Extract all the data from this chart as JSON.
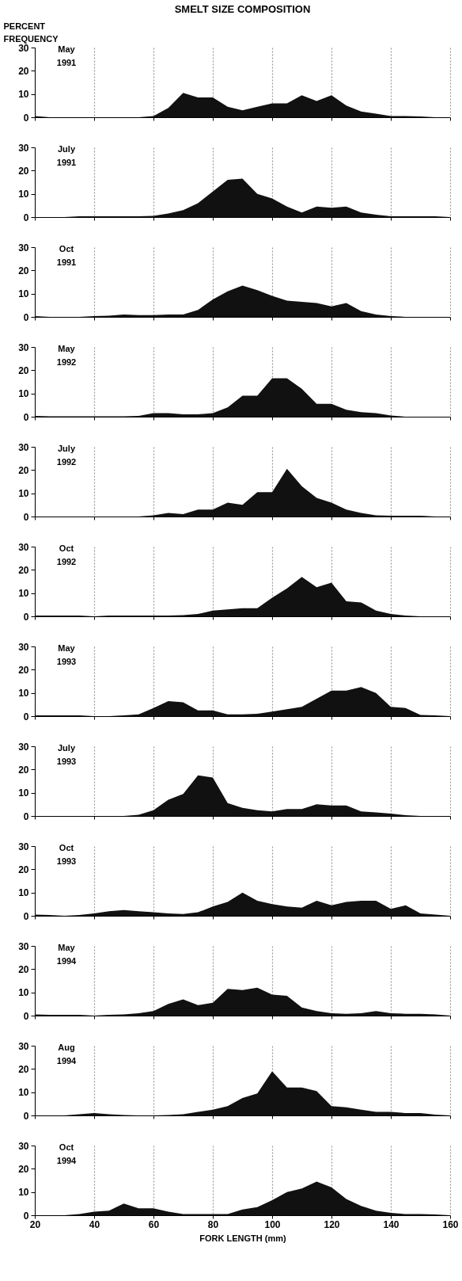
{
  "chart_data": [
    {
      "type": "area",
      "title": "SMELT SIZE COMPOSITION",
      "ylabel": "PERCENT FREQUENCY",
      "annotations": [
        "May 1991"
      ],
      "color": "#111111",
      "grid": "x",
      "tick_labels": "y",
      "ylim": [
        0,
        30
      ],
      "yticks": [
        0,
        10,
        20,
        30
      ],
      "categories": [
        null,
        null,
        null,
        null,
        null,
        null,
        null,
        null,
        null,
        null,
        null,
        null,
        null,
        null,
        null,
        null,
        null,
        null,
        null,
        null,
        null,
        null,
        null,
        null,
        null,
        null,
        null,
        null,
        null
      ],
      "values": [
        0.5,
        0,
        0,
        0,
        0,
        0,
        0,
        0,
        0.5,
        4,
        10.5,
        8.5,
        8.5,
        4.5,
        3,
        4.5,
        6,
        6,
        9.5,
        7,
        9.5,
        5,
        2.5,
        1.5,
        0.5,
        0.5,
        0.3,
        0,
        0
      ]
    },
    {
      "type": "area",
      "annotations": [
        "July 1991"
      ],
      "color": "#111111",
      "grid": "x",
      "tick_labels": "y",
      "ylim": [
        0,
        30
      ],
      "yticks": [
        0,
        10,
        20,
        30
      ],
      "categories": [
        null,
        null,
        null,
        null,
        null,
        null,
        null,
        null,
        null,
        null,
        null,
        null,
        null,
        null,
        null,
        null,
        null,
        null,
        null,
        null,
        null,
        null,
        null,
        null,
        null,
        null,
        null,
        null,
        null
      ],
      "values": [
        0,
        0,
        0,
        0.3,
        0.3,
        0.3,
        0.3,
        0.3,
        0.5,
        1.5,
        3,
        6,
        11,
        16,
        16.5,
        10,
        8,
        4.5,
        2,
        4.5,
        4,
        4.5,
        2,
        1,
        0.3,
        0.3,
        0.3,
        0.3,
        0
      ]
    },
    {
      "type": "area",
      "annotations": [
        "Oct 1991"
      ],
      "color": "#111111",
      "grid": "x",
      "tick_labels": "y",
      "ylim": [
        0,
        30
      ],
      "yticks": [
        0,
        10,
        20,
        30
      ],
      "categories": [
        null,
        null,
        null,
        null,
        null,
        null,
        null,
        null,
        null,
        null,
        null,
        null,
        null,
        null,
        null,
        null,
        null,
        null,
        null,
        null,
        null,
        null,
        null,
        null,
        null,
        null,
        null,
        null,
        null
      ],
      "values": [
        0.3,
        0,
        0,
        0,
        0.3,
        0.5,
        1,
        0.8,
        0.8,
        1,
        1,
        3,
        7.5,
        11,
        13.5,
        11.5,
        9,
        7,
        6.5,
        6,
        4.5,
        6,
        2.5,
        1,
        0.3,
        0,
        0,
        0,
        0
      ]
    },
    {
      "type": "area",
      "annotations": [
        "May 1992"
      ],
      "color": "#111111",
      "grid": "x",
      "tick_labels": "y",
      "ylim": [
        0,
        30
      ],
      "yticks": [
        0,
        10,
        20,
        30
      ],
      "categories": [
        null,
        null,
        null,
        null,
        null,
        null,
        null,
        null,
        null,
        null,
        null,
        null,
        null,
        null,
        null,
        null,
        null,
        null,
        null,
        null,
        null,
        null,
        null,
        null,
        null,
        null,
        null,
        null,
        null
      ],
      "values": [
        0.3,
        0.2,
        0.2,
        0.2,
        0.2,
        0.2,
        0.2,
        0.3,
        1.5,
        1.5,
        1,
        1,
        1.5,
        4,
        9,
        9,
        16.5,
        16.5,
        12,
        5.5,
        5.5,
        3,
        2,
        1.5,
        0.5,
        0,
        0,
        0,
        0
      ]
    },
    {
      "type": "area",
      "annotations": [
        "July 1992"
      ],
      "color": "#111111",
      "grid": "x",
      "tick_labels": "y",
      "ylim": [
        0,
        30
      ],
      "yticks": [
        0,
        10,
        20,
        30
      ],
      "categories": [
        null,
        null,
        null,
        null,
        null,
        null,
        null,
        null,
        null,
        null,
        null,
        null,
        null,
        null,
        null,
        null,
        null,
        null,
        null,
        null,
        null,
        null,
        null,
        null,
        null,
        null,
        null,
        null,
        null
      ],
      "values": [
        0,
        0,
        0,
        0,
        0,
        0,
        0,
        0,
        0.5,
        1.5,
        1,
        3,
        3,
        6,
        5,
        10.5,
        10.5,
        20.5,
        13,
        8,
        6,
        3,
        1.5,
        0.5,
        0.3,
        0.3,
        0.3,
        0,
        0
      ]
    },
    {
      "type": "area",
      "annotations": [
        "Oct 1992"
      ],
      "color": "#111111",
      "grid": "x",
      "tick_labels": "y",
      "ylim": [
        0,
        30
      ],
      "yticks": [
        0,
        10,
        20,
        30
      ],
      "categories": [
        null,
        null,
        null,
        null,
        null,
        null,
        null,
        null,
        null,
        null,
        null,
        null,
        null,
        null,
        null,
        null,
        null,
        null,
        null,
        null,
        null,
        null,
        null,
        null,
        null,
        null,
        null,
        null,
        null
      ],
      "values": [
        0.3,
        0.3,
        0.3,
        0.3,
        0,
        0.3,
        0.3,
        0.3,
        0.3,
        0.3,
        0.5,
        1,
        2.5,
        3,
        3.5,
        3.5,
        8,
        12,
        17,
        12.5,
        14.5,
        6.5,
        6,
        2.5,
        1,
        0.3,
        0,
        0,
        0
      ]
    },
    {
      "type": "area",
      "annotations": [
        "May 1993"
      ],
      "color": "#111111",
      "grid": "x",
      "tick_labels": "y",
      "ylim": [
        0,
        30
      ],
      "yticks": [
        0,
        10,
        20,
        30
      ],
      "categories": [
        null,
        null,
        null,
        null,
        null,
        null,
        null,
        null,
        null,
        null,
        null,
        null,
        null,
        null,
        null,
        null,
        null,
        null,
        null,
        null,
        null,
        null,
        null,
        null,
        null,
        null,
        null,
        null,
        null
      ],
      "values": [
        0.3,
        0.3,
        0.3,
        0.3,
        0,
        0,
        0.3,
        0.8,
        3.5,
        6.5,
        6,
        2.5,
        2.5,
        0.8,
        0.8,
        1,
        2,
        3,
        4,
        7.5,
        11,
        11,
        12.5,
        10,
        4,
        3.5,
        0.5,
        0.3,
        0
      ]
    },
    {
      "type": "area",
      "annotations": [
        "July 1993"
      ],
      "color": "#111111",
      "grid": "x",
      "tick_labels": "y",
      "ylim": [
        0,
        30
      ],
      "yticks": [
        0,
        10,
        20,
        30
      ],
      "categories": [
        null,
        null,
        null,
        null,
        null,
        null,
        null,
        null,
        null,
        null,
        null,
        null,
        null,
        null,
        null,
        null,
        null,
        null,
        null,
        null,
        null,
        null,
        null,
        null,
        null,
        null,
        null,
        null,
        null
      ],
      "values": [
        0,
        0,
        0,
        0,
        0,
        0,
        0,
        0.5,
        2.5,
        7,
        9.5,
        17.5,
        16.5,
        5.5,
        3.5,
        2.5,
        2,
        3,
        3,
        5,
        4.5,
        4.5,
        2,
        1.5,
        1,
        0.3,
        0,
        0,
        0
      ]
    },
    {
      "type": "area",
      "annotations": [
        "Oct 1993"
      ],
      "color": "#111111",
      "grid": "x",
      "tick_labels": "y",
      "ylim": [
        0,
        30
      ],
      "yticks": [
        0,
        10,
        20,
        30
      ],
      "categories": [
        null,
        null,
        null,
        null,
        null,
        null,
        null,
        null,
        null,
        null,
        null,
        null,
        null,
        null,
        null,
        null,
        null,
        null,
        null,
        null,
        null,
        null,
        null,
        null,
        null,
        null,
        null,
        null,
        null
      ],
      "values": [
        0.5,
        0.3,
        0,
        0.3,
        1,
        2,
        2.5,
        2,
        1.5,
        1,
        0.8,
        1.5,
        4,
        6,
        10,
        6.5,
        5,
        4,
        3.5,
        6.5,
        4.5,
        6,
        6.5,
        6.5,
        3,
        4.5,
        1,
        0.5,
        0
      ]
    },
    {
      "type": "area",
      "annotations": [
        "May 1994"
      ],
      "color": "#111111",
      "grid": "x",
      "tick_labels": "y",
      "ylim": [
        0,
        30
      ],
      "yticks": [
        0,
        10,
        20,
        30
      ],
      "categories": [
        null,
        null,
        null,
        null,
        null,
        null,
        null,
        null,
        null,
        null,
        null,
        null,
        null,
        null,
        null,
        null,
        null,
        null,
        null,
        null,
        null,
        null,
        null,
        null,
        null,
        null,
        null,
        null,
        null
      ],
      "values": [
        0.5,
        0.3,
        0.3,
        0.3,
        0,
        0.3,
        0.5,
        1,
        2,
        5,
        7,
        4.5,
        5.5,
        11.5,
        11,
        12,
        9,
        8.5,
        3.5,
        2,
        1,
        0.8,
        1,
        2,
        1,
        0.8,
        0.8,
        0.5,
        0
      ]
    },
    {
      "type": "area",
      "annotations": [
        "Aug 1994"
      ],
      "color": "#111111",
      "grid": "x",
      "tick_labels": "y",
      "ylim": [
        0,
        30
      ],
      "yticks": [
        0,
        10,
        20,
        30
      ],
      "categories": [
        null,
        null,
        null,
        null,
        null,
        null,
        null,
        null,
        null,
        null,
        null,
        null,
        null,
        null,
        null,
        null,
        null,
        null,
        null,
        null,
        null,
        null,
        null,
        null,
        null,
        null,
        null,
        null,
        null
      ],
      "values": [
        0,
        0,
        0,
        0.5,
        1,
        0.5,
        0.2,
        0,
        0,
        0.2,
        0.5,
        1.5,
        2.5,
        4,
        7.5,
        9.5,
        19,
        12,
        12,
        10.5,
        4,
        3.5,
        2.5,
        1.5,
        1.5,
        1,
        1,
        0.3,
        0
      ]
    },
    {
      "type": "area",
      "xlabel": "FORK LENGTH (mm)",
      "annotations": [
        "Oct 1994"
      ],
      "color": "#111111",
      "grid": "x",
      "xlim": [
        20,
        160
      ],
      "xticks": [
        20,
        40,
        60,
        80,
        100,
        120,
        140,
        160
      ],
      "ylim": [
        0,
        30
      ],
      "yticks": [
        0,
        10,
        20,
        30
      ],
      "x": [
        20,
        25,
        30,
        35,
        40,
        45,
        50,
        55,
        60,
        65,
        70,
        75,
        80,
        85,
        90,
        95,
        100,
        105,
        110,
        115,
        120,
        125,
        130,
        135,
        140,
        145,
        150,
        155,
        160
      ],
      "values": [
        0,
        0,
        0,
        0.5,
        1.5,
        2,
        5,
        3,
        3,
        1.5,
        0.5,
        0.5,
        0.5,
        0.5,
        2.5,
        3.5,
        6.5,
        10,
        11.5,
        14.5,
        12,
        7,
        4,
        2,
        1,
        0.5,
        0.5,
        0.3,
        0
      ]
    }
  ]
}
